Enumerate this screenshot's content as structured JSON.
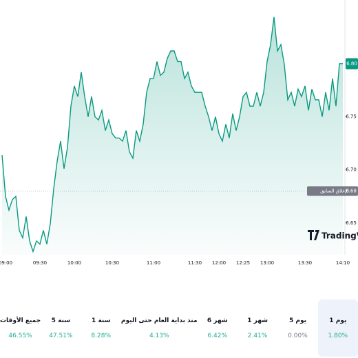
{
  "chart_data": {
    "type": "area",
    "color": "#089981",
    "categories": [
      null,
      "09:00",
      null,
      null,
      null,
      null,
      null,
      null,
      null,
      null,
      null,
      "09:30",
      null,
      null,
      null,
      null,
      null,
      null,
      null,
      null,
      null,
      "10:00",
      null,
      null,
      null,
      null,
      null,
      null,
      null,
      null,
      null,
      null,
      "10:30",
      null,
      null,
      null,
      null,
      null,
      null,
      null,
      null,
      null,
      null,
      null,
      "11:00",
      null,
      null,
      null,
      null,
      null,
      null,
      null,
      null,
      null,
      null,
      null,
      "11:30",
      null,
      null,
      null,
      null,
      null,
      null,
      "12:00",
      null,
      null,
      null,
      null,
      null,
      null,
      "12:25",
      null,
      null,
      null,
      null,
      null,
      null,
      "13:00",
      null,
      null,
      null,
      null,
      null,
      null,
      null,
      null,
      null,
      null,
      "13:30",
      null,
      null,
      null,
      null,
      null,
      null,
      null,
      null,
      null,
      null,
      "14:10"
    ],
    "values": [
      6.714,
      6.675,
      6.662,
      6.672,
      6.675,
      6.643,
      6.636,
      6.656,
      6.633,
      6.623,
      6.633,
      6.63,
      6.643,
      6.63,
      6.649,
      6.682,
      6.708,
      6.727,
      6.701,
      6.721,
      6.76,
      6.779,
      6.769,
      6.792,
      6.769,
      6.75,
      6.769,
      6.75,
      6.747,
      6.756,
      6.737,
      6.747,
      6.734,
      6.73,
      6.73,
      6.727,
      6.737,
      6.717,
      6.711,
      6.737,
      6.727,
      6.743,
      6.773,
      6.786,
      6.786,
      6.802,
      6.789,
      6.792,
      6.805,
      6.812,
      6.812,
      6.802,
      6.802,
      6.786,
      6.792,
      6.779,
      6.773,
      6.773,
      6.773,
      6.76,
      6.75,
      6.737,
      6.75,
      6.734,
      6.727,
      6.743,
      6.73,
      6.753,
      6.737,
      6.75,
      6.769,
      6.773,
      6.76,
      6.76,
      6.773,
      6.76,
      6.773,
      6.802,
      6.818,
      6.844,
      6.812,
      6.818,
      6.799,
      6.766,
      6.773,
      6.76,
      6.776,
      6.769,
      6.779,
      6.756,
      6.776,
      6.766,
      6.766,
      6.75,
      6.773,
      6.756,
      6.786,
      6.76,
      6.8,
      6.8
    ],
    "ylim": [
      6.62,
      6.86
    ],
    "yticks": [
      {
        "value": 6.65,
        "label": "6.65"
      },
      {
        "value": 6.7,
        "label": "6.70"
      },
      {
        "value": 6.75,
        "label": "6.75"
      }
    ],
    "last_price": {
      "value": 6.8,
      "label": "6.80"
    },
    "previous_close": {
      "value": 6.68,
      "label": "6.68",
      "text": "الإغلاق السابق"
    },
    "watermark": "TradingView"
  },
  "periods": [
    {
      "label": "1 يوم",
      "change": "1.80%",
      "selected": true
    },
    {
      "label": "5 يوم",
      "change": "0.00%",
      "selected": false
    },
    {
      "label": "1 شهر",
      "change": "2.41%",
      "selected": false
    },
    {
      "label": "6 شهر",
      "change": "6.42%",
      "selected": false
    },
    {
      "label": "منذ بداية العام حتى اليوم",
      "change": "4.13%",
      "selected": false
    },
    {
      "label": "1 سنة",
      "change": "8.28%",
      "selected": false
    },
    {
      "label": "5 سنة",
      "change": "47.51%",
      "selected": false
    },
    {
      "label": "جميع الأوقات",
      "change": "46.55%",
      "selected": false
    }
  ]
}
